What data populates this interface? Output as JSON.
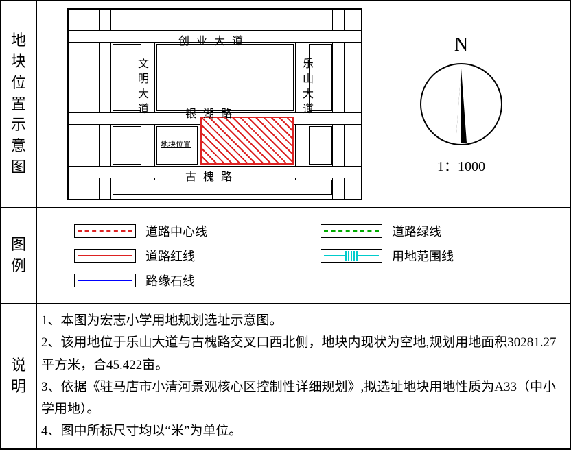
{
  "colors": {
    "red": "#d22222",
    "green": "#0a0",
    "blue": "#00f",
    "cyan": "#0cc",
    "black": "#000"
  },
  "section_labels": {
    "map": "地块位置示意图",
    "legend": "图例",
    "notes": "说明"
  },
  "compass": {
    "north": "N",
    "scale": "1：1000"
  },
  "map": {
    "roads": {
      "top": "创业大道",
      "mid": "银湖路",
      "bottom": "古槐路",
      "left": "文明大道",
      "right": "乐山大道"
    },
    "parcel_label": "地块位置"
  },
  "legend": {
    "centerline": "道路中心线",
    "greenline": "道路绿线",
    "redline": "道路红线",
    "landline": "用地范围线",
    "curbline": "路缘石线"
  },
  "notes": {
    "n1": "1、本图为宏志小学用地规划选址示意图。",
    "n2": "2、该用地位于乐山大道与古槐路交叉口西北侧，地块内现状为空地,规划用地面积30281.27平方米，合45.422亩。",
    "n3": "3、依据《驻马店市小清河景观核心区控制性详细规划》,拟选址地块用地性质为A33（中小学用地）。",
    "n4": "4、图中所标尺寸均以“米”为单位。"
  }
}
